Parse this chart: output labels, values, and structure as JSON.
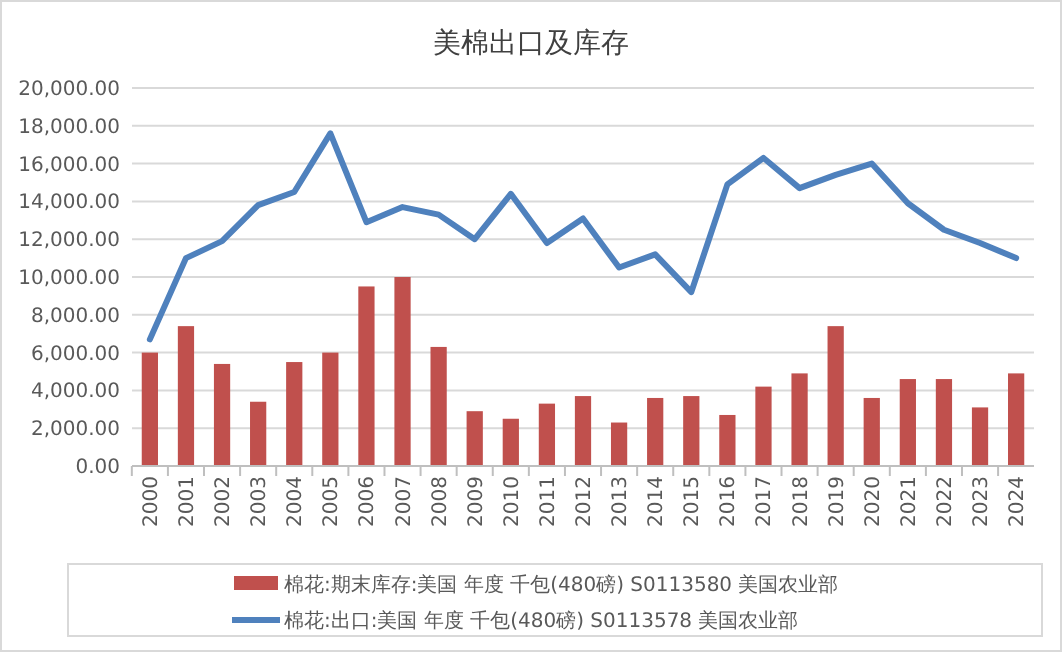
{
  "chart_data": {
    "type": "bar",
    "title": "美棉出口及库存",
    "categories": [
      "2000",
      "2001",
      "2002",
      "2003",
      "2004",
      "2005",
      "2006",
      "2007",
      "2008",
      "2009",
      "2010",
      "2011",
      "2012",
      "2013",
      "2014",
      "2015",
      "2016",
      "2017",
      "2018",
      "2019",
      "2020",
      "2021",
      "2022",
      "2023",
      "2024"
    ],
    "series": [
      {
        "name": "棉花:期末库存:美国 年度 千包(480磅) S0113580 美国农业部",
        "color": "#c0504d",
        "values": [
          6000,
          7400,
          5400,
          3400,
          5500,
          6000,
          9500,
          10000,
          6300,
          2900,
          2500,
          3300,
          3700,
          2300,
          3600,
          3700,
          2700,
          4200,
          4900,
          7400,
          3600,
          4600,
          4600,
          3100,
          4900
        ]
      },
      {
        "name": "棉花:出口:美国 年度 千包(480磅) S0113578 美国农业部",
        "type": "line",
        "color": "#4f81bd",
        "values": [
          6700,
          11000,
          11900,
          13800,
          14500,
          17600,
          12900,
          13700,
          13300,
          12000,
          14400,
          11800,
          13100,
          10500,
          11200,
          9200,
          14900,
          16300,
          14700,
          15400,
          16000,
          13900,
          12500,
          11800,
          11000
        ]
      }
    ],
    "ylim": [
      0,
      20000
    ],
    "yticks": [
      {
        "value": 0,
        "label": "0.00"
      },
      {
        "value": 2000,
        "label": "2,000.00"
      },
      {
        "value": 4000,
        "label": "4,000.00"
      },
      {
        "value": 6000,
        "label": "6,000.00"
      },
      {
        "value": 8000,
        "label": "8,000.00"
      },
      {
        "value": 10000,
        "label": "10,000.00"
      },
      {
        "value": 12000,
        "label": "12,000.00"
      },
      {
        "value": 14000,
        "label": "14,000.00"
      },
      {
        "value": 16000,
        "label": "16,000.00"
      },
      {
        "value": 18000,
        "label": "18,000.00"
      },
      {
        "value": 20000,
        "label": "20,000.00"
      }
    ],
    "grid": "y",
    "legend": "bottom"
  }
}
